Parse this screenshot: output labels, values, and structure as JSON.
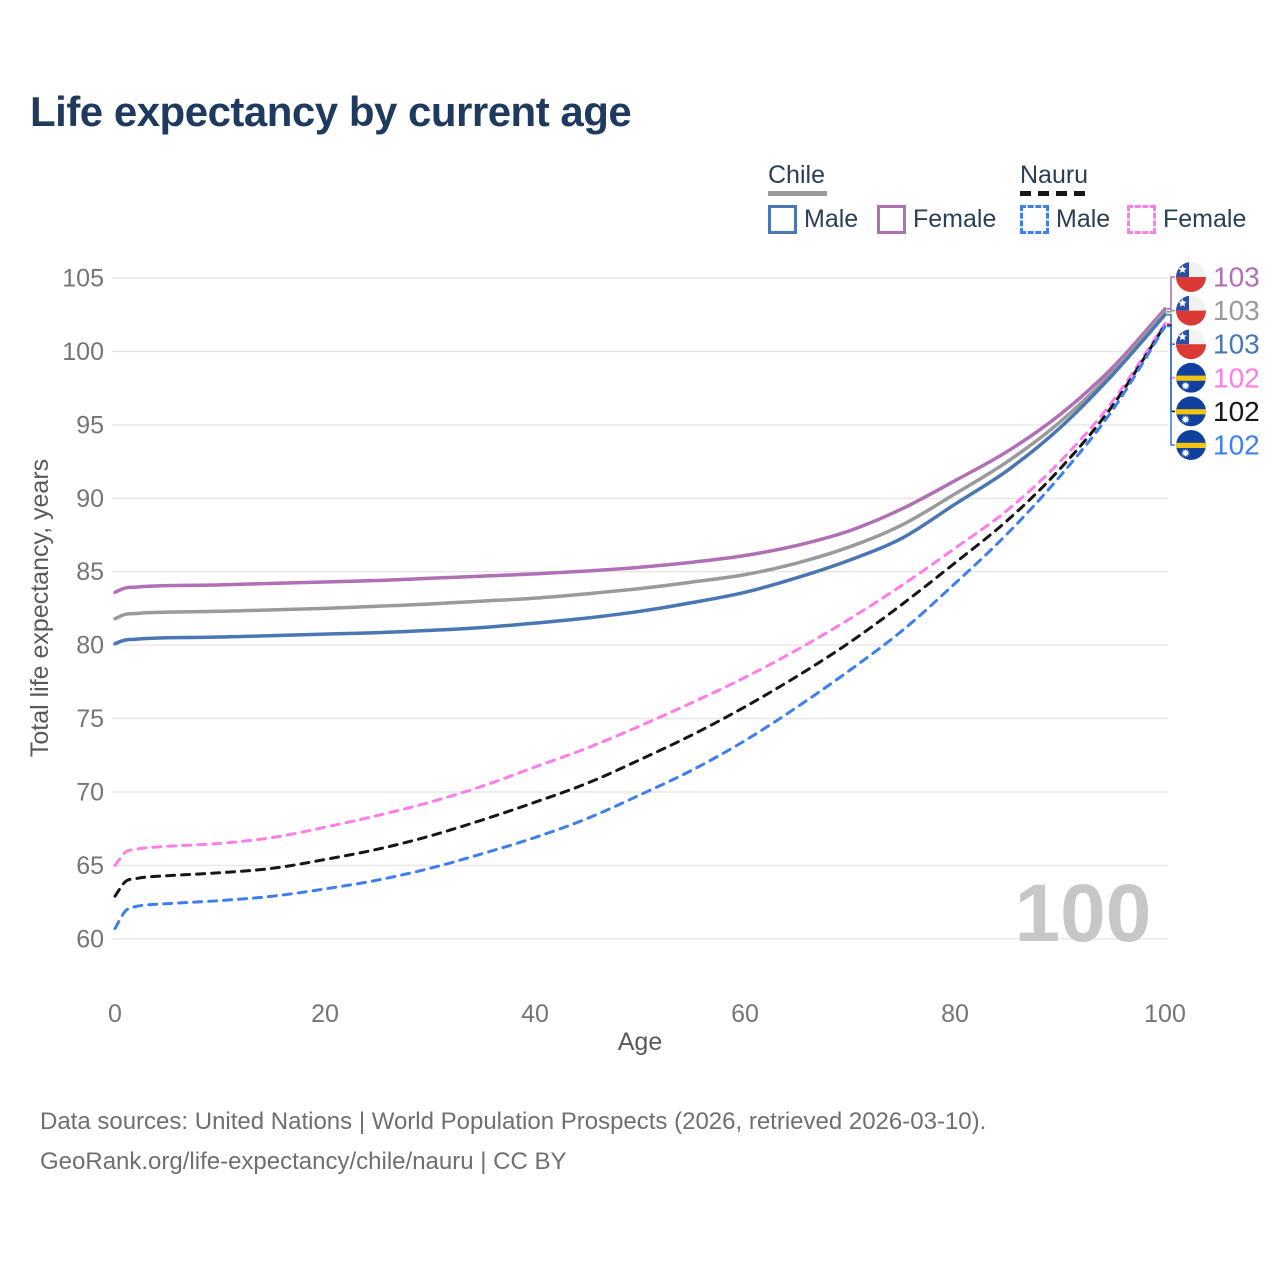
{
  "title": "Life expectancy by current age",
  "legend": {
    "groups": [
      {
        "label": "Chile",
        "line_style": "solid",
        "items": [
          {
            "label": "Male"
          },
          {
            "label": "Female"
          }
        ]
      },
      {
        "label": "Nauru",
        "line_style": "dashed",
        "items": [
          {
            "label": "Male"
          },
          {
            "label": "Female"
          }
        ]
      }
    ]
  },
  "chart_data": {
    "type": "line",
    "title": "Life expectancy by current age",
    "xlabel": "Age",
    "ylabel": "Total life expectancy, years",
    "xlim": [
      0,
      100
    ],
    "ylim": [
      60,
      105
    ],
    "xticks": [
      0,
      20,
      40,
      60,
      80,
      100
    ],
    "yticks": [
      60,
      65,
      70,
      75,
      80,
      85,
      90,
      95,
      100,
      105
    ],
    "grid": true,
    "legend_position": "top-right",
    "watermark": "100",
    "x": [
      0,
      1,
      2,
      3,
      5,
      10,
      15,
      20,
      25,
      30,
      35,
      40,
      45,
      50,
      55,
      60,
      65,
      70,
      75,
      80,
      85,
      90,
      95,
      100
    ],
    "series": [
      {
        "name": "Chile Female",
        "country": "Chile",
        "sex": "Female",
        "color": "#b16fb6",
        "dashed": false,
        "flag": "chile",
        "end_label": "103",
        "values": [
          83.6,
          83.9,
          83.95,
          84.0,
          84.05,
          84.1,
          84.2,
          84.3,
          84.4,
          84.55,
          84.7,
          84.85,
          85.05,
          85.3,
          85.65,
          86.1,
          86.8,
          87.8,
          89.3,
          91.2,
          93.2,
          95.7,
          98.9,
          102.9
        ]
      },
      {
        "name": "Chile Total",
        "country": "Chile",
        "sex": "Total",
        "color": "#9a9a9a",
        "dashed": false,
        "flag": "chile",
        "end_label": "103",
        "values": [
          81.8,
          82.1,
          82.15,
          82.2,
          82.25,
          82.3,
          82.4,
          82.5,
          82.65,
          82.8,
          83.0,
          83.2,
          83.5,
          83.85,
          84.3,
          84.8,
          85.6,
          86.7,
          88.2,
          90.3,
          92.5,
          95.2,
          98.6,
          102.7
        ]
      },
      {
        "name": "Chile Male",
        "country": "Chile",
        "sex": "Male",
        "color": "#4a77b4",
        "dashed": false,
        "flag": "chile",
        "end_label": "103",
        "values": [
          80.1,
          80.35,
          80.4,
          80.45,
          80.5,
          80.55,
          80.65,
          80.75,
          80.85,
          81.0,
          81.2,
          81.5,
          81.85,
          82.3,
          82.9,
          83.6,
          84.6,
          85.8,
          87.3,
          89.6,
          91.9,
          94.8,
          98.4,
          102.5
        ]
      },
      {
        "name": "Nauru Female",
        "country": "Nauru",
        "sex": "Female",
        "color": "#ff7de8",
        "dashed": true,
        "flag": "nauru",
        "end_label": "102",
        "values": [
          65.0,
          65.9,
          66.1,
          66.2,
          66.3,
          66.5,
          66.9,
          67.6,
          68.4,
          69.3,
          70.4,
          71.7,
          73.0,
          74.5,
          76.1,
          77.8,
          79.7,
          81.8,
          84.1,
          86.6,
          89.2,
          92.5,
          96.6,
          101.9
        ]
      },
      {
        "name": "Nauru Total",
        "country": "Nauru",
        "sex": "Total",
        "color": "#161616",
        "dashed": true,
        "flag": "nauru",
        "end_label": "102",
        "values": [
          62.9,
          63.9,
          64.1,
          64.2,
          64.3,
          64.5,
          64.8,
          65.4,
          66.1,
          67.0,
          68.1,
          69.3,
          70.6,
          72.2,
          73.9,
          75.8,
          77.9,
          80.2,
          82.8,
          85.6,
          88.5,
          92.0,
          96.3,
          101.8
        ]
      },
      {
        "name": "Nauru Male",
        "country": "Nauru",
        "sex": "Male",
        "color": "#3d7ff0",
        "dashed": true,
        "flag": "nauru",
        "end_label": "102",
        "values": [
          60.7,
          61.9,
          62.2,
          62.3,
          62.4,
          62.6,
          62.9,
          63.4,
          64.0,
          64.8,
          65.8,
          66.9,
          68.2,
          69.8,
          71.5,
          73.5,
          75.8,
          78.3,
          81.0,
          84.2,
          87.6,
          91.5,
          96.0,
          101.7
        ]
      }
    ],
    "flag_colors": {
      "chile_blue": "#2b4fa8",
      "chile_red": "#d93a35",
      "chile_white": "#f2f2f2",
      "nauru_blue": "#10419f",
      "nauru_yellow": "#f3c40f",
      "nauru_white": "#ffffff"
    }
  },
  "colors": {
    "title": "#1f3a5f",
    "grid": "#e7e7e7",
    "tick_label": "#757575",
    "axis_title": "#5a5a5a",
    "watermark": "#c7c7c7",
    "footer": "#6f6f6f"
  },
  "footer": {
    "line1": "Data sources: United Nations | World Population Prospects (2026, retrieved 2026-03-10).",
    "line2": "GeoRank.org/life-expectancy/chile/nauru | CC BY"
  }
}
